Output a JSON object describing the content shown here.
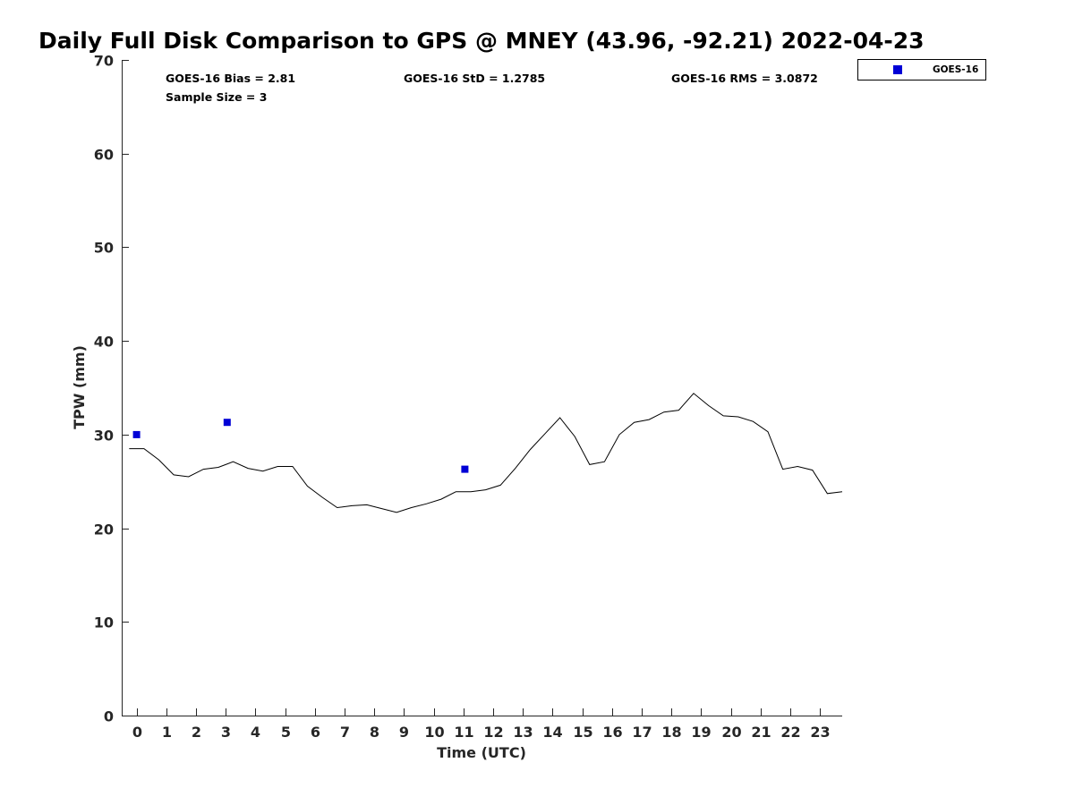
{
  "chart_data": {
    "type": "line",
    "title": "Daily Full Disk Comparison to GPS @ MNEY (43.96, -92.21) 2022-04-23",
    "xlabel": "Time (UTC)",
    "ylabel": "TPW (mm)",
    "xlim": [
      -0.5,
      23.75
    ],
    "ylim": [
      0,
      70
    ],
    "x_ticks": [
      0,
      1,
      2,
      3,
      4,
      5,
      6,
      7,
      8,
      9,
      10,
      11,
      12,
      13,
      14,
      15,
      16,
      17,
      18,
      19,
      20,
      21,
      22,
      23
    ],
    "y_ticks": [
      0,
      10,
      20,
      30,
      40,
      50,
      60,
      70
    ],
    "grid": false,
    "legend": {
      "position": "top-right-outside",
      "entries": [
        "GOES-16"
      ]
    },
    "stats": {
      "bias": "GOES-16 Bias = 2.81",
      "std": "GOES-16 StD = 1.2785",
      "rms": "GOES-16 RMS = 3.0872",
      "sample": "Sample Size = 3"
    },
    "series": [
      {
        "kind": "line",
        "color": "#000000",
        "x": [
          -0.25,
          0.25,
          0.75,
          1.25,
          1.75,
          2.25,
          2.75,
          3.25,
          3.75,
          4.25,
          4.75,
          5.25,
          5.75,
          6.25,
          6.75,
          7.25,
          7.75,
          8.25,
          8.75,
          9.25,
          9.75,
          10.25,
          10.75,
          11.25,
          11.75,
          12.25,
          12.75,
          13.25,
          13.75,
          14.25,
          14.75,
          15.25,
          15.75,
          16.25,
          16.75,
          17.25,
          17.75,
          18.25,
          18.75,
          19.25,
          19.75,
          20.25,
          20.75,
          21.25,
          21.75,
          22.25,
          22.75,
          23.25,
          23.75
        ],
        "y": [
          28.5,
          28.5,
          27.3,
          25.7,
          25.5,
          26.3,
          26.5,
          27.1,
          26.4,
          26.1,
          26.6,
          26.6,
          24.5,
          23.3,
          22.2,
          22.4,
          22.5,
          22.1,
          21.7,
          22.2,
          22.6,
          23.1,
          23.9,
          23.9,
          24.1,
          24.6,
          26.4,
          28.4,
          30.1,
          31.8,
          29.8,
          26.8,
          27.1,
          30.0,
          31.3,
          31.6,
          32.4,
          32.6,
          34.4,
          33.1,
          32.0,
          31.9,
          31.4,
          30.3,
          26.3,
          26.6,
          26.2,
          23.7,
          23.9
        ]
      },
      {
        "name": "GOES-16",
        "kind": "scatter",
        "color": "#0000d6",
        "x": [
          0,
          3.05,
          11.05
        ],
        "y": [
          30.0,
          31.3,
          26.3
        ]
      }
    ]
  }
}
